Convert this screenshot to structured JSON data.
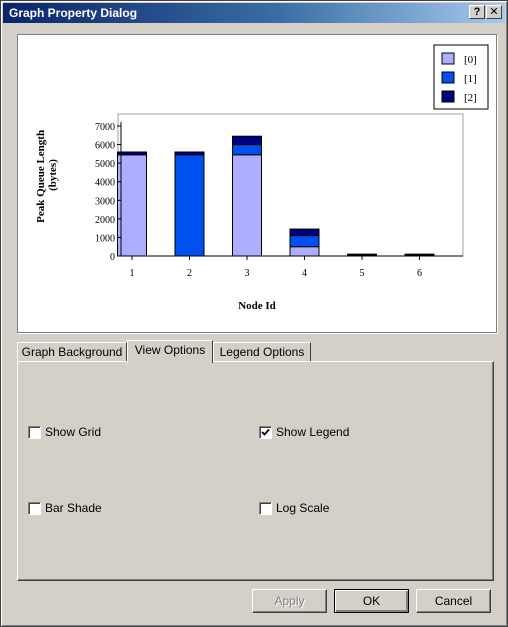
{
  "window": {
    "title": "Graph Property Dialog",
    "help_label": "?",
    "close_label": "✕"
  },
  "chart_data": {
    "type": "bar",
    "stacked": true,
    "categories": [
      "1",
      "2",
      "3",
      "4",
      "5",
      "6"
    ],
    "series": [
      {
        "name": "[0]",
        "color": "#aeaefe",
        "values": [
          5450,
          0,
          5450,
          500,
          0,
          0
        ]
      },
      {
        "name": "[1]",
        "color": "#0050f0",
        "values": [
          0,
          5450,
          550,
          600,
          80,
          80
        ]
      },
      {
        "name": "[2]",
        "color": "#000080",
        "values": [
          150,
          150,
          450,
          350,
          20,
          20
        ]
      }
    ],
    "xlabel": "Node Id",
    "ylabel": "Peak Queue Length\n(bytes)",
    "ylabel_lines": [
      "Peak Queue Length",
      "(bytes)"
    ],
    "yticks": [
      0,
      1000,
      2000,
      3000,
      4000,
      5000,
      6000,
      7000
    ],
    "ylim": [
      0,
      7500
    ],
    "grid": false,
    "legend_position": "top-right"
  },
  "tabs": [
    {
      "label": "Graph Background",
      "active": false
    },
    {
      "label": "View Options",
      "active": true
    },
    {
      "label": "Legend Options",
      "active": false
    }
  ],
  "options": {
    "show_grid": {
      "label": "Show Grid",
      "checked": false
    },
    "show_legend": {
      "label": "Show Legend",
      "checked": true
    },
    "bar_shade": {
      "label": "Bar Shade",
      "checked": false
    },
    "log_scale": {
      "label": "Log Scale",
      "checked": false
    }
  },
  "buttons": {
    "apply": "Apply",
    "ok": "OK",
    "cancel": "Cancel"
  }
}
